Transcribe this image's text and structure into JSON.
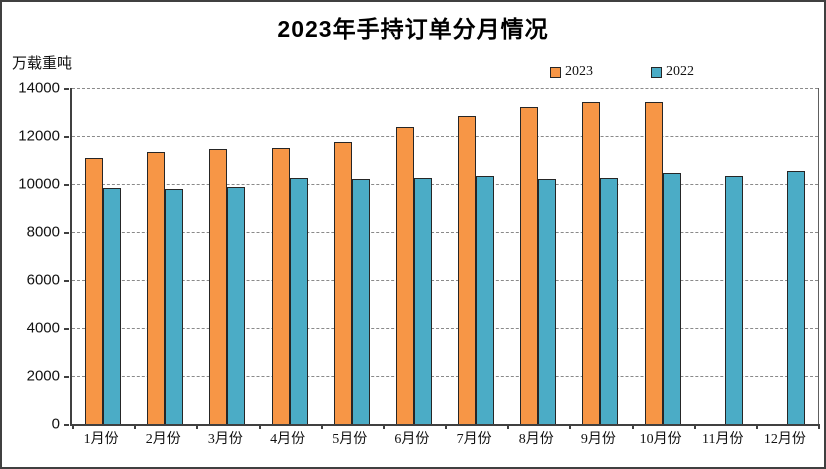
{
  "window": {
    "background": "#ffffff",
    "border_color": "#404040"
  },
  "header": {
    "title": "2023年手持订单分月情况",
    "unit_label": "万载重吨"
  },
  "chart_data": {
    "type": "bar",
    "title": "2023年手持订单分月情况",
    "ylabel": "万载重吨",
    "xlabel": "",
    "categories": [
      "1月份",
      "2月份",
      "3月份",
      "4月份",
      "5月份",
      "6月份",
      "7月份",
      "8月份",
      "9月份",
      "10月份",
      "11月份",
      "12月份"
    ],
    "series": [
      {
        "name": "2023",
        "color": "#F79646",
        "values": [
          11100,
          11350,
          11440,
          11520,
          11760,
          12390,
          12820,
          13190,
          13430,
          13430,
          null,
          null
        ]
      },
      {
        "name": "2022",
        "color": "#4BACC6",
        "values": [
          9820,
          9790,
          9890,
          10240,
          10190,
          10250,
          10330,
          10210,
          10260,
          10440,
          10350,
          10550
        ]
      }
    ],
    "ylim": [
      0,
      14000
    ],
    "yticks": [
      0,
      2000,
      4000,
      6000,
      8000,
      10000,
      12000,
      14000
    ],
    "grid": true,
    "gridline_style": "dashed",
    "legend_position": "top-right",
    "bar_border_color": "#262626"
  }
}
